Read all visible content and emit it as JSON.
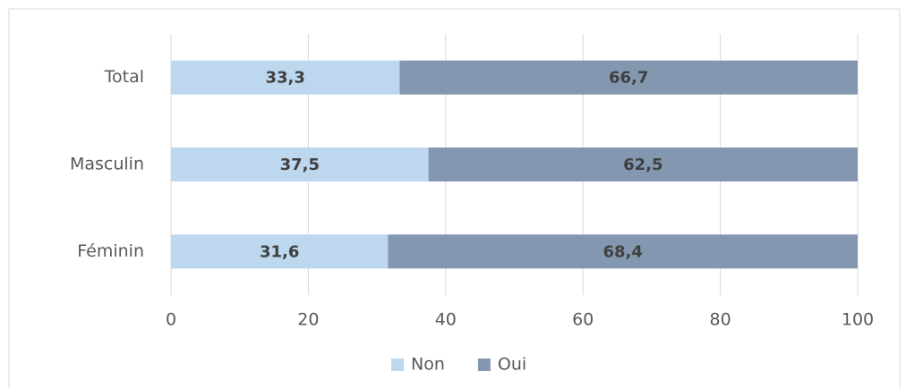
{
  "chart_data": {
    "type": "bar",
    "orientation": "horizontal",
    "stacked": true,
    "categories": [
      "Total",
      "Masculin",
      "Féminin"
    ],
    "series": [
      {
        "name": "Non",
        "color": "#bdd7ee",
        "values": [
          33.3,
          37.5,
          31.6
        ],
        "value_labels": [
          "33,3",
          "37,5",
          "31,6"
        ]
      },
      {
        "name": "Oui",
        "color": "#8497b0",
        "values": [
          66.7,
          62.5,
          68.4
        ],
        "value_labels": [
          "66,7",
          "62,5",
          "68,4"
        ]
      }
    ],
    "xlim": [
      0,
      100
    ],
    "xticks": [
      0,
      20,
      40,
      60,
      80,
      100
    ],
    "grid": true,
    "legend": "bottom"
  }
}
